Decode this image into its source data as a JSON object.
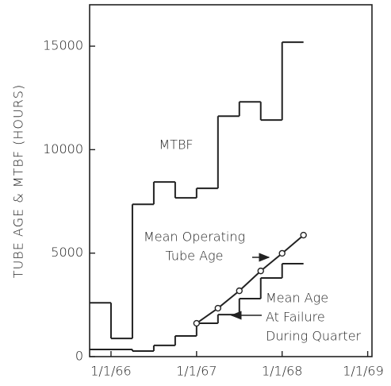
{
  "chart_data": {
    "type": "step",
    "y_label": "TUBE AGE & MTBF (HOURS)",
    "xlim": [
      1965.75,
      1969.05
    ],
    "xticks": [
      {
        "value": 1966,
        "label": "1/1/66"
      },
      {
        "value": 1967,
        "label": "1/1/67"
      },
      {
        "value": 1968,
        "label": "1/1/68"
      },
      {
        "value": 1969,
        "label": "1/1/69"
      }
    ],
    "ylim": [
      0,
      17000
    ],
    "yticks": [
      0,
      5000,
      10000,
      15000
    ],
    "series": [
      {
        "name": "MTBF",
        "color": "#222222",
        "kind": "step",
        "bins": [
          1965.75,
          1966.0,
          1966.25,
          1966.5,
          1966.75,
          1967.0,
          1967.25,
          1967.5,
          1967.75,
          1968.0,
          1968.25
        ],
        "values": [
          2600,
          880,
          7360,
          8440,
          7670,
          8130,
          11620,
          12310,
          11430,
          15190
        ],
        "label_lines": [
          "MTBF"
        ]
      },
      {
        "name": "Mean Age At Failure During Quarter",
        "color": "#222222",
        "kind": "step",
        "bins": [
          1965.75,
          1966.25,
          1966.5,
          1966.75,
          1967.0,
          1967.25,
          1967.5,
          1967.75,
          1968.0,
          1968.25
        ],
        "values": [
          345,
          270,
          540,
          1000,
          1610,
          2030,
          2800,
          3800,
          4490
        ],
        "label_lines": [
          "Mean Age",
          "At Failure",
          "During Quarter"
        ]
      },
      {
        "name": "Mean Operating Tube Age",
        "color": "#222222",
        "kind": "line",
        "x": [
          1967.0,
          1967.25,
          1967.5,
          1967.75,
          1968.0,
          1968.25
        ],
        "values": [
          1610,
          2340,
          3180,
          4140,
          4990,
          5870
        ],
        "label_lines": [
          "Mean Operating",
          "Tube Age"
        ]
      }
    ]
  }
}
